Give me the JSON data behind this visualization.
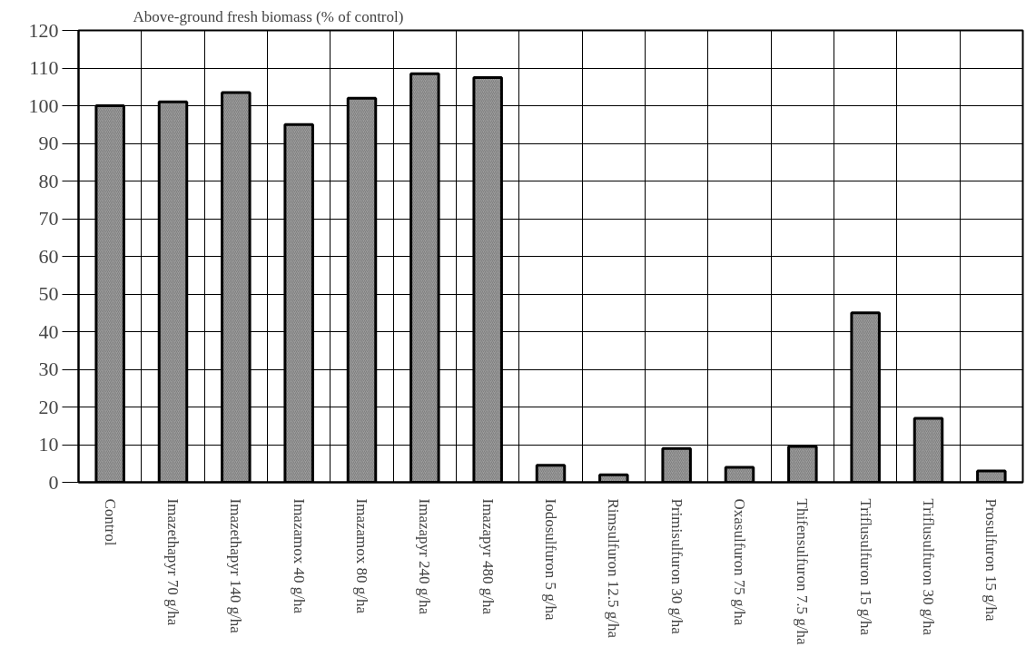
{
  "chart_data": {
    "type": "bar",
    "ylabel": "Above-ground fresh biomass (% of control)",
    "categories": [
      "Control",
      "Imazethapyr 70 g/ha",
      "Imazethapyr 140 g/ha",
      "Imazamox 40 g/ha",
      "Imazamox 80 g/ha",
      "Imazapyr 240 g/ha",
      "Imazapyr 480 g/ha",
      "Iodosulfuron 5 g/ha",
      "Rimsulfuron 12.5 g/ha",
      "Primisulfuron 30 g/ha",
      "Oxasulfuron 75 g/ha",
      "Thifensulfuron 7.5 g/ha",
      "Triflusulfuron 15 g/ha",
      "Triflusulfuron 30 g/ha",
      "Prosulfuron 15 g/ha"
    ],
    "values": [
      100,
      101,
      103.5,
      95,
      102,
      108.5,
      107.5,
      4.5,
      2,
      9,
      4,
      9.5,
      45,
      17,
      3
    ],
    "color": "#9c9c9c",
    "ylim": [
      0,
      120
    ],
    "yticks": [
      0,
      10,
      20,
      30,
      40,
      50,
      60,
      70,
      80,
      90,
      100,
      110,
      120
    ],
    "grid": true
  }
}
